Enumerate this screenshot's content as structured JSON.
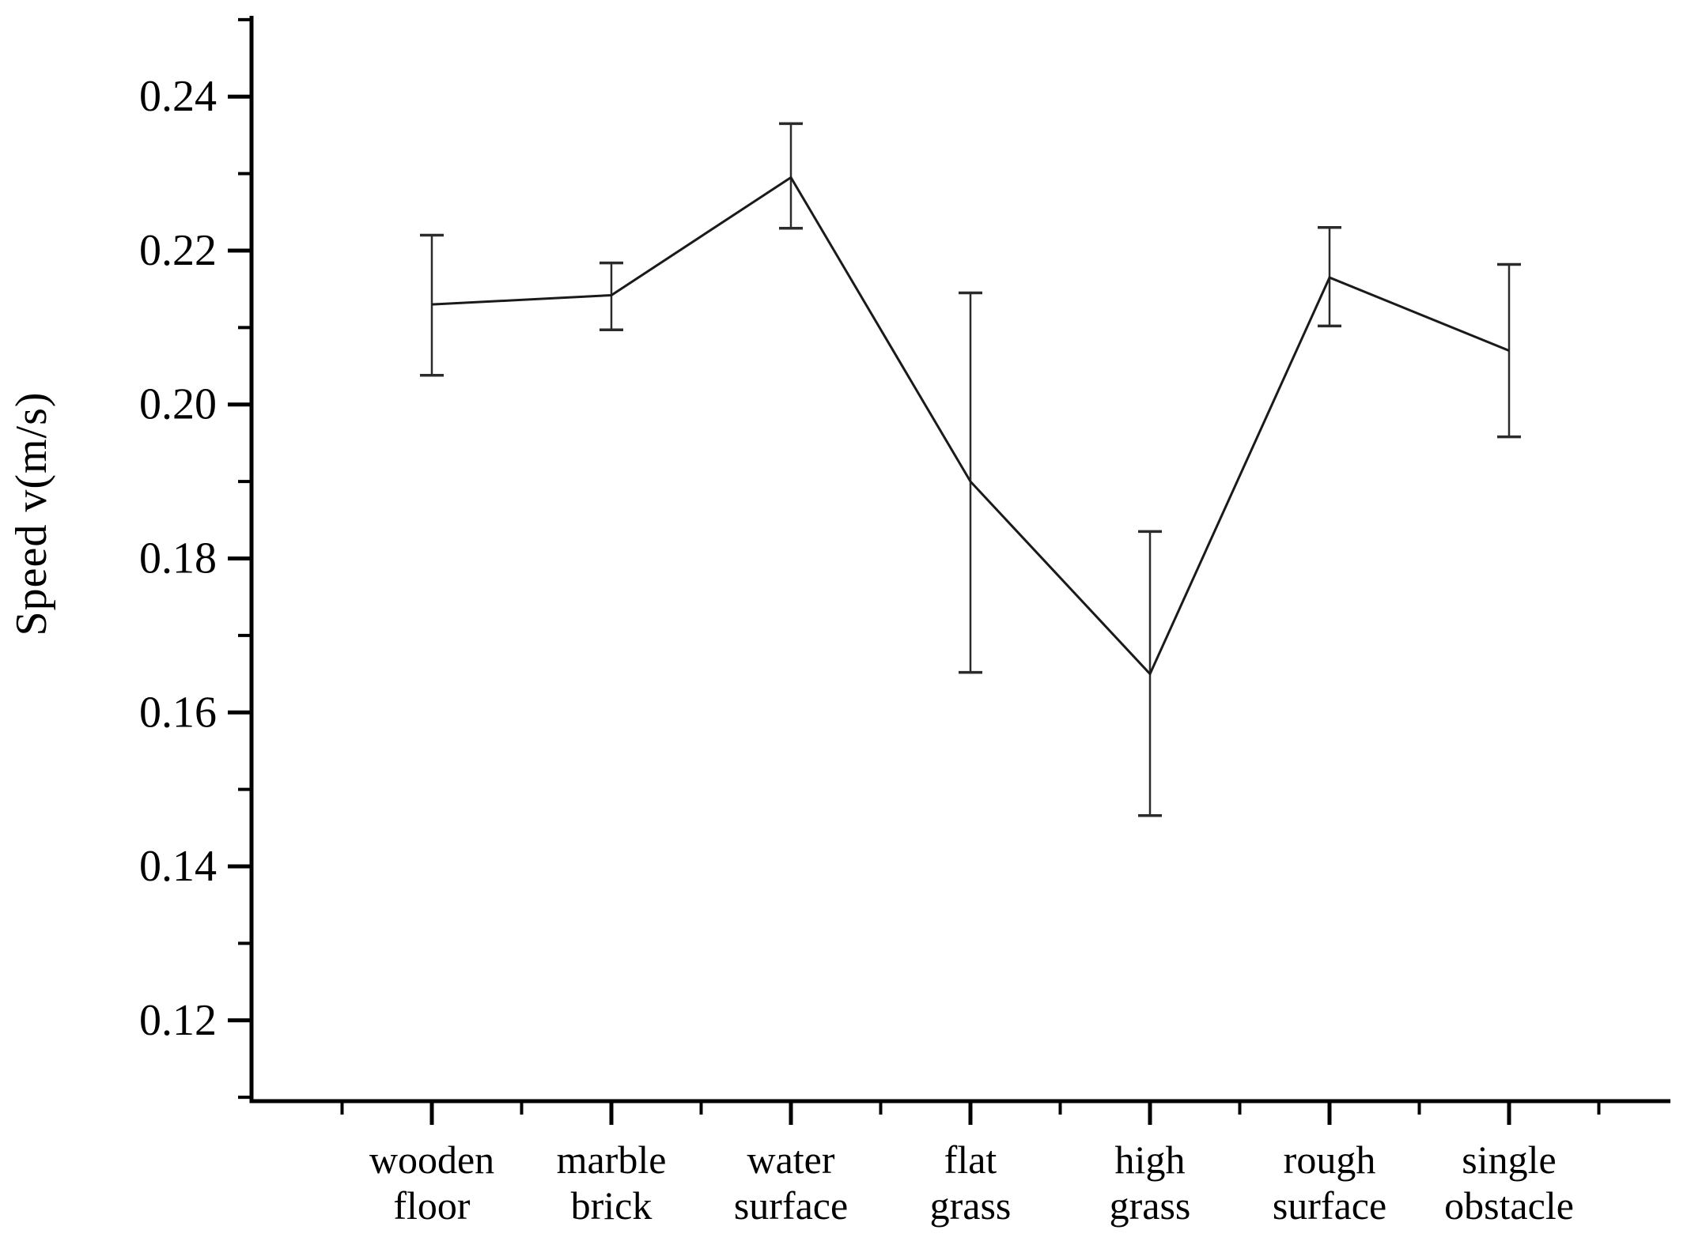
{
  "chart_data": {
    "type": "line",
    "title": "",
    "xlabel": "",
    "ylabel": "Speed v(m/s)",
    "categories": [
      "wooden floor",
      "marble brick",
      "water surface",
      "flat grass",
      "high grass",
      "rough surface",
      "single obstacle"
    ],
    "series": [
      {
        "name": "speed",
        "values": [
          0.213,
          0.2142,
          0.2295,
          0.19,
          0.165,
          0.2165,
          0.207
        ],
        "error_plus": [
          0.009,
          0.0042,
          0.007,
          0.0245,
          0.0185,
          0.0065,
          0.0112
        ],
        "error_minus": [
          0.0092,
          0.0045,
          0.0066,
          0.0248,
          0.0184,
          0.0063,
          0.0112
        ]
      }
    ],
    "ylim": [
      0.1095,
      0.2505
    ],
    "ytick_labels": [
      "0.12",
      "0.14",
      "0.16",
      "0.18",
      "0.20",
      "0.22",
      "0.24"
    ],
    "yticks_major": [
      0.12,
      0.14,
      0.16,
      0.18,
      0.2,
      0.22,
      0.24
    ],
    "ytick_minor_step": 0.01,
    "grid": false,
    "legend": "none",
    "marker": "none",
    "line_color": "#1a1a1a",
    "errorbar_color": "#2b2b2b",
    "axis_color": "#000000",
    "background": "#ffffff"
  }
}
